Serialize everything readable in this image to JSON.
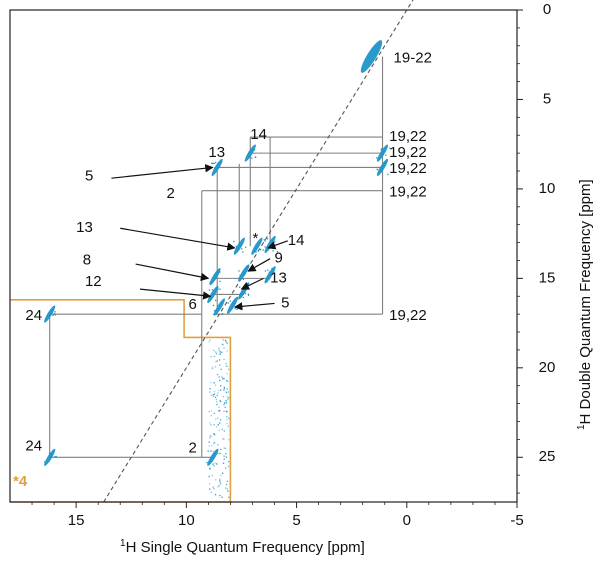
{
  "chart_data": {
    "type": "scatter",
    "subtype": "2D NMR DQ/SQ correlation spectrum",
    "x_axis": {
      "label_sup": "1",
      "label": "H Single Quantum Frequency [ppm]",
      "range": [
        18,
        -5
      ],
      "ticks": [
        15,
        10,
        5,
        0,
        -5
      ]
    },
    "y_axis": {
      "label_sup": "1",
      "label": "H Double Quantum Frequency [ppm]",
      "range": [
        0,
        27.5
      ],
      "position": "right",
      "ticks": [
        0,
        5,
        10,
        15,
        20,
        25
      ]
    },
    "diagonal": {
      "style": "dashed",
      "slope_dq_per_sq": 2
    },
    "peak_color": "#1f93c9",
    "line_color": "#808080",
    "inset_color": "#e0a040",
    "peaks": [
      {
        "sq": 1.6,
        "dq": 2.6,
        "size": "large"
      },
      {
        "sq": 7.1,
        "dq": 8.0
      },
      {
        "sq": 1.1,
        "dq": 8.0
      },
      {
        "sq": 8.6,
        "dq": 8.8
      },
      {
        "sq": 1.1,
        "dq": 8.8
      },
      {
        "sq": 7.6,
        "dq": 13.2
      },
      {
        "sq": 6.8,
        "dq": 13.2
      },
      {
        "sq": 6.2,
        "dq": 13.1
      },
      {
        "sq": 8.7,
        "dq": 14.9
      },
      {
        "sq": 7.4,
        "dq": 14.7
      },
      {
        "sq": 6.2,
        "dq": 14.8
      },
      {
        "sq": 8.8,
        "dq": 15.9
      },
      {
        "sq": 7.4,
        "dq": 15.7
      },
      {
        "sq": 8.5,
        "dq": 16.6
      },
      {
        "sq": 7.9,
        "dq": 16.5
      },
      {
        "sq": 16.2,
        "dq": 17.0
      },
      {
        "sq": 16.2,
        "dq": 25.0
      },
      {
        "sq": 8.8,
        "dq": 25.0
      }
    ],
    "annotations": [
      {
        "text": "19-22"
      },
      {
        "text": "14"
      },
      {
        "text": "13"
      },
      {
        "text": "5"
      },
      {
        "text": "2"
      },
      {
        "text": "19,22"
      },
      {
        "text": "19,22"
      },
      {
        "text": "19,22"
      },
      {
        "text": "19,22"
      },
      {
        "text": "19,22"
      },
      {
        "text": "13"
      },
      {
        "text": "*"
      },
      {
        "text": "14"
      },
      {
        "text": "8"
      },
      {
        "text": "9"
      },
      {
        "text": "12"
      },
      {
        "text": "13"
      },
      {
        "text": "6"
      },
      {
        "text": "5"
      },
      {
        "text": "24"
      },
      {
        "text": "24"
      },
      {
        "text": "2"
      }
    ],
    "inset_label": "*4"
  }
}
